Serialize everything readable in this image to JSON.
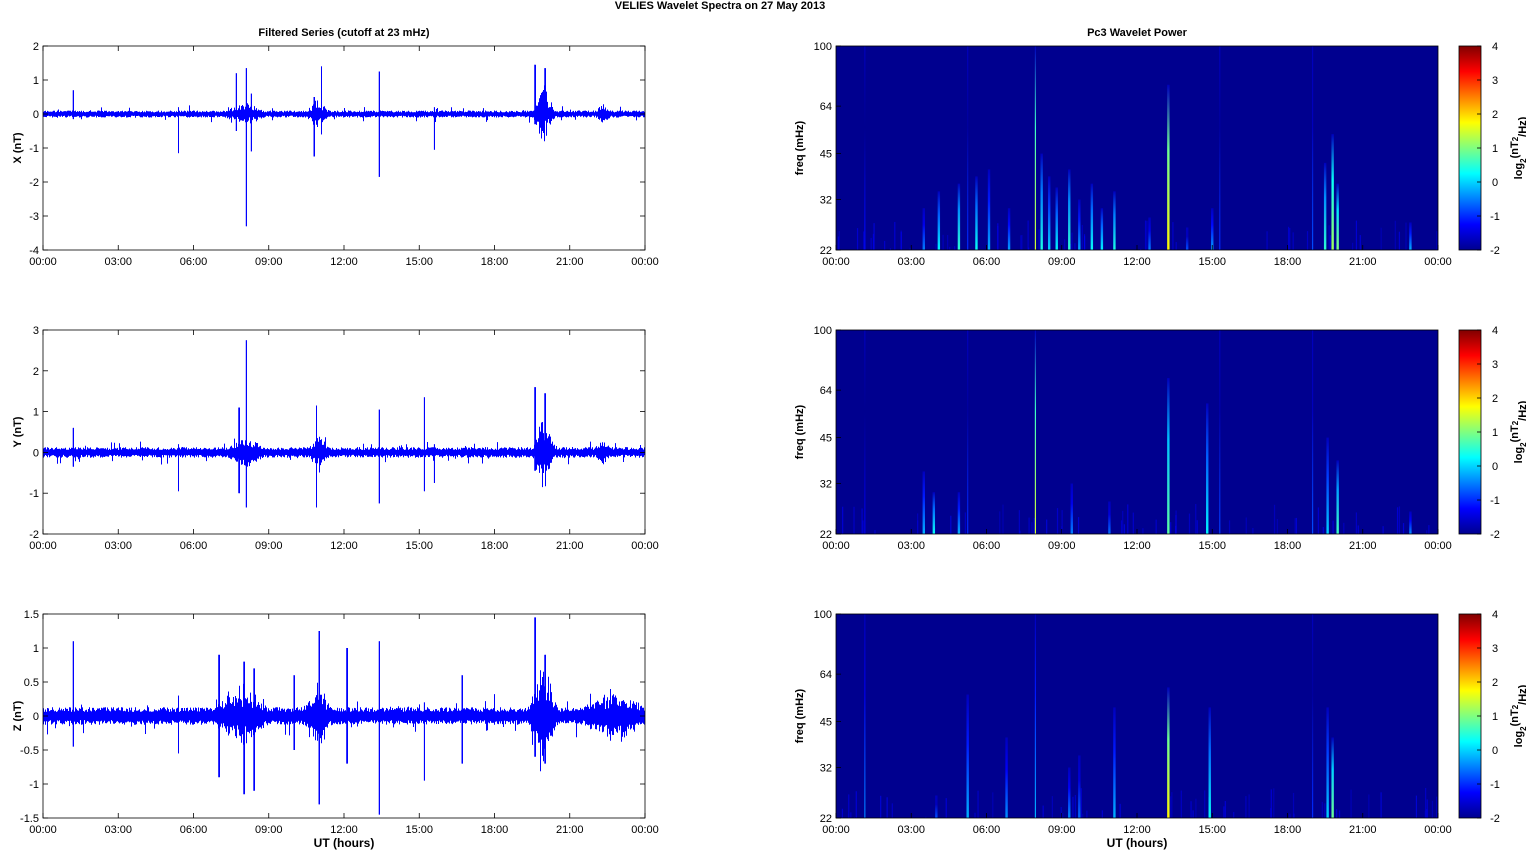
{
  "figure": {
    "title": "VELIES Wavelet Spectra on 27 May      2013",
    "left_title": "Filtered Series (cutoff at 23 mHz)",
    "right_title": "Pc3 Wavelet Power",
    "x_label": "UT (hours)"
  },
  "colors": {
    "trace": "#0000ff",
    "spectrum_bg": "#00008f",
    "colormap": [
      "#00008f",
      "#0000ff",
      "#00ffff",
      "#ffff00",
      "#ff0000",
      "#800000"
    ]
  },
  "chart_data": [
    {
      "type": "line",
      "panel": "X",
      "ylabel": "X (nT)",
      "ylim": [
        -4,
        2
      ],
      "yticks": [
        2,
        1,
        0,
        -1,
        -2,
        -3,
        -4
      ],
      "xticks": [
        "00:00",
        "03:00",
        "06:00",
        "09:00",
        "12:00",
        "15:00",
        "18:00",
        "21:00",
        "00:00"
      ],
      "xlim_hours": [
        0,
        24
      ],
      "noise_amplitude": 0.08,
      "spikes": [
        {
          "t": 1.2,
          "lo": -0.15,
          "hi": 0.7
        },
        {
          "t": 5.4,
          "lo": -1.15,
          "hi": 0.2
        },
        {
          "t": 7.7,
          "lo": -0.5,
          "hi": 1.2
        },
        {
          "t": 8.1,
          "lo": -3.3,
          "hi": 1.35
        },
        {
          "t": 8.3,
          "lo": -1.1,
          "hi": 0.6
        },
        {
          "t": 10.8,
          "lo": -1.25,
          "hi": 0.5
        },
        {
          "t": 11.1,
          "lo": -0.6,
          "hi": 1.4
        },
        {
          "t": 13.4,
          "lo": -1.85,
          "hi": 1.25
        },
        {
          "t": 15.6,
          "lo": -1.05,
          "hi": 0.2
        },
        {
          "t": 19.6,
          "lo": -0.3,
          "hi": 1.45
        },
        {
          "t": 20.0,
          "lo": -0.2,
          "hi": 1.35
        }
      ],
      "bursts": [
        {
          "start": 19.5,
          "end": 20.4,
          "amplitude": 0.6
        },
        {
          "start": 10.5,
          "end": 11.4,
          "amplitude": 0.25
        },
        {
          "start": 7.2,
          "end": 8.8,
          "amplitude": 0.2
        },
        {
          "start": 22.0,
          "end": 22.6,
          "amplitude": 0.15
        }
      ]
    },
    {
      "type": "line",
      "panel": "Y",
      "ylabel": "Y (nT)",
      "ylim": [
        -2,
        3
      ],
      "yticks": [
        3,
        2,
        1,
        0,
        -1,
        -2
      ],
      "xticks": [
        "00:00",
        "03:00",
        "06:00",
        "09:00",
        "12:00",
        "15:00",
        "18:00",
        "21:00",
        "00:00"
      ],
      "xlim_hours": [
        0,
        24
      ],
      "noise_amplitude": 0.1,
      "spikes": [
        {
          "t": 1.2,
          "lo": -0.35,
          "hi": 0.6
        },
        {
          "t": 5.4,
          "lo": -0.95,
          "hi": 0.2
        },
        {
          "t": 7.8,
          "lo": -1.0,
          "hi": 1.1
        },
        {
          "t": 8.1,
          "lo": -1.35,
          "hi": 2.75
        },
        {
          "t": 10.9,
          "lo": -1.35,
          "hi": 1.15
        },
        {
          "t": 13.4,
          "lo": -1.25,
          "hi": 1.05
        },
        {
          "t": 15.2,
          "lo": -0.95,
          "hi": 1.35
        },
        {
          "t": 15.6,
          "lo": -0.75,
          "hi": 0.2
        },
        {
          "t": 19.6,
          "lo": -0.45,
          "hi": 1.6
        },
        {
          "t": 20.0,
          "lo": -0.3,
          "hi": 1.45
        }
      ],
      "bursts": [
        {
          "start": 19.5,
          "end": 20.4,
          "amplitude": 0.6
        },
        {
          "start": 10.6,
          "end": 11.4,
          "amplitude": 0.3
        },
        {
          "start": 7.3,
          "end": 8.8,
          "amplitude": 0.2
        },
        {
          "start": 22.0,
          "end": 22.6,
          "amplitude": 0.2
        }
      ]
    },
    {
      "type": "line",
      "panel": "Z",
      "ylabel": "Z (nT)",
      "ylim": [
        -1.5,
        1.5
      ],
      "yticks": [
        1.5,
        1,
        0.5,
        0,
        -0.5,
        -1,
        -1.5
      ],
      "xticks": [
        "00:00",
        "03:00",
        "06:00",
        "09:00",
        "12:00",
        "15:00",
        "18:00",
        "21:00",
        "00:00"
      ],
      "xlim_hours": [
        0,
        24
      ],
      "noise_amplitude": 0.1,
      "spikes": [
        {
          "t": 1.2,
          "lo": -0.45,
          "hi": 1.1
        },
        {
          "t": 5.4,
          "lo": -0.55,
          "hi": 0.3
        },
        {
          "t": 7.0,
          "lo": -0.9,
          "hi": 0.9
        },
        {
          "t": 8.0,
          "lo": -1.15,
          "hi": 0.8
        },
        {
          "t": 8.4,
          "lo": -1.1,
          "hi": 0.7
        },
        {
          "t": 10.0,
          "lo": -0.5,
          "hi": 0.6
        },
        {
          "t": 11.0,
          "lo": -1.3,
          "hi": 1.25
        },
        {
          "t": 12.1,
          "lo": -0.7,
          "hi": 1.0
        },
        {
          "t": 13.4,
          "lo": -1.45,
          "hi": 1.1
        },
        {
          "t": 15.2,
          "lo": -0.95,
          "hi": 0.2
        },
        {
          "t": 16.7,
          "lo": -0.7,
          "hi": 0.6
        },
        {
          "t": 19.6,
          "lo": -0.6,
          "hi": 1.45
        },
        {
          "t": 20.0,
          "lo": -0.7,
          "hi": 0.9
        }
      ],
      "bursts": [
        {
          "start": 19.3,
          "end": 20.5,
          "amplitude": 0.55
        },
        {
          "start": 10.3,
          "end": 11.5,
          "amplitude": 0.3
        },
        {
          "start": 6.8,
          "end": 9.0,
          "amplitude": 0.25
        },
        {
          "start": 21.5,
          "end": 24.0,
          "amplitude": 0.2
        }
      ]
    },
    {
      "type": "heatmap",
      "panel": "X",
      "ylabel": "freq (mHz)",
      "yscale": "log",
      "ylim": [
        22,
        100
      ],
      "yticks": [
        100,
        64,
        45,
        32,
        22
      ],
      "xticks": [
        "00:00",
        "03:00",
        "06:00",
        "09:00",
        "12:00",
        "15:00",
        "18:00",
        "21:00",
        "00:00"
      ],
      "xlim_hours": [
        0,
        24
      ],
      "colorbar_label": "log2(nT^2/Hz)",
      "clim": [
        -2,
        4
      ],
      "colorbar_ticks": [
        4,
        3,
        2,
        1,
        0,
        -1,
        -2
      ],
      "streaks": [
        {
          "t": 1.15,
          "fmax": 100,
          "power": -1.2
        },
        {
          "t": 3.5,
          "fmax": 30,
          "power": -0.5
        },
        {
          "t": 4.1,
          "fmax": 34,
          "power": 0.2
        },
        {
          "t": 4.9,
          "fmax": 36,
          "power": 0.5
        },
        {
          "t": 5.25,
          "fmax": 100,
          "power": -1.0
        },
        {
          "t": 5.6,
          "fmax": 38,
          "power": 0.3
        },
        {
          "t": 6.1,
          "fmax": 40,
          "power": -0.2
        },
        {
          "t": 6.9,
          "fmax": 30,
          "power": -0.3
        },
        {
          "t": 7.95,
          "fmax": 100,
          "power": 1.5
        },
        {
          "t": 8.2,
          "fmax": 45,
          "power": 0.4
        },
        {
          "t": 8.5,
          "fmax": 38,
          "power": 0.0
        },
        {
          "t": 8.8,
          "fmax": 35,
          "power": 0.2
        },
        {
          "t": 9.3,
          "fmax": 40,
          "power": 0.5
        },
        {
          "t": 9.7,
          "fmax": 32,
          "power": -0.2
        },
        {
          "t": 10.2,
          "fmax": 36,
          "power": 0.3
        },
        {
          "t": 10.6,
          "fmax": 30,
          "power": 0.2
        },
        {
          "t": 11.1,
          "fmax": 34,
          "power": 0.4
        },
        {
          "t": 12.5,
          "fmax": 28,
          "power": -0.5
        },
        {
          "t": 13.25,
          "fmax": 75,
          "power": 1.8
        },
        {
          "t": 14.0,
          "fmax": 26,
          "power": -0.8
        },
        {
          "t": 15.0,
          "fmax": 30,
          "power": -0.3
        },
        {
          "t": 15.3,
          "fmax": 100,
          "power": -1.0
        },
        {
          "t": 19.0,
          "fmax": 100,
          "power": -0.8
        },
        {
          "t": 19.5,
          "fmax": 42,
          "power": 0.5
        },
        {
          "t": 19.8,
          "fmax": 52,
          "power": 1.2
        },
        {
          "t": 20.0,
          "fmax": 36,
          "power": 1.0
        },
        {
          "t": 22.9,
          "fmax": 27,
          "power": -0.2
        }
      ]
    },
    {
      "type": "heatmap",
      "panel": "Y",
      "ylabel": "freq (mHz)",
      "yscale": "log",
      "ylim": [
        22,
        100
      ],
      "yticks": [
        100,
        64,
        45,
        32,
        22
      ],
      "xticks": [
        "00:00",
        "03:00",
        "06:00",
        "09:00",
        "12:00",
        "15:00",
        "18:00",
        "21:00",
        "00:00"
      ],
      "xlim_hours": [
        0,
        24
      ],
      "colorbar_label": "log2(nT^2/Hz)",
      "clim": [
        -2,
        4
      ],
      "colorbar_ticks": [
        4,
        3,
        2,
        1,
        0,
        -1,
        -2
      ],
      "streaks": [
        {
          "t": 1.15,
          "fmax": 100,
          "power": -1.4
        },
        {
          "t": 3.5,
          "fmax": 35,
          "power": -0.2
        },
        {
          "t": 3.9,
          "fmax": 30,
          "power": 0.3
        },
        {
          "t": 4.9,
          "fmax": 30,
          "power": -0.2
        },
        {
          "t": 5.25,
          "fmax": 100,
          "power": -1.0
        },
        {
          "t": 7.95,
          "fmax": 100,
          "power": 1.5
        },
        {
          "t": 9.4,
          "fmax": 32,
          "power": -0.5
        },
        {
          "t": 10.9,
          "fmax": 28,
          "power": -0.6
        },
        {
          "t": 13.25,
          "fmax": 70,
          "power": 0.8
        },
        {
          "t": 14.8,
          "fmax": 58,
          "power": 0.2
        },
        {
          "t": 15.3,
          "fmax": 100,
          "power": -0.9
        },
        {
          "t": 19.0,
          "fmax": 100,
          "power": -0.8
        },
        {
          "t": 19.6,
          "fmax": 45,
          "power": 0.0
        },
        {
          "t": 20.0,
          "fmax": 38,
          "power": 0.6
        },
        {
          "t": 22.9,
          "fmax": 26,
          "power": -0.4
        }
      ]
    },
    {
      "type": "heatmap",
      "panel": "Z",
      "ylabel": "freq (mHz)",
      "yscale": "log",
      "ylim": [
        22,
        100
      ],
      "yticks": [
        100,
        64,
        45,
        32,
        22
      ],
      "xticks": [
        "00:00",
        "03:00",
        "06:00",
        "09:00",
        "12:00",
        "15:00",
        "18:00",
        "21:00",
        "00:00"
      ],
      "xlim_hours": [
        0,
        24
      ],
      "colorbar_label": "log2(nT^2/Hz)",
      "clim": [
        -2,
        4
      ],
      "colorbar_ticks": [
        4,
        3,
        2,
        1,
        0,
        -1,
        -2
      ],
      "streaks": [
        {
          "t": 1.15,
          "fmax": 100,
          "power": -0.5
        },
        {
          "t": 4.0,
          "fmax": 26,
          "power": -0.8
        },
        {
          "t": 5.25,
          "fmax": 55,
          "power": -0.2
        },
        {
          "t": 6.8,
          "fmax": 40,
          "power": -0.4
        },
        {
          "t": 7.95,
          "fmax": 100,
          "power": -0.2
        },
        {
          "t": 9.3,
          "fmax": 32,
          "power": -0.4
        },
        {
          "t": 9.7,
          "fmax": 35,
          "power": -0.6
        },
        {
          "t": 11.1,
          "fmax": 50,
          "power": -0.2
        },
        {
          "t": 13.25,
          "fmax": 58,
          "power": 1.8
        },
        {
          "t": 14.9,
          "fmax": 50,
          "power": 0.3
        },
        {
          "t": 19.0,
          "fmax": 100,
          "power": -1.0
        },
        {
          "t": 19.6,
          "fmax": 50,
          "power": 0.0
        },
        {
          "t": 19.8,
          "fmax": 40,
          "power": 0.9
        }
      ]
    }
  ]
}
